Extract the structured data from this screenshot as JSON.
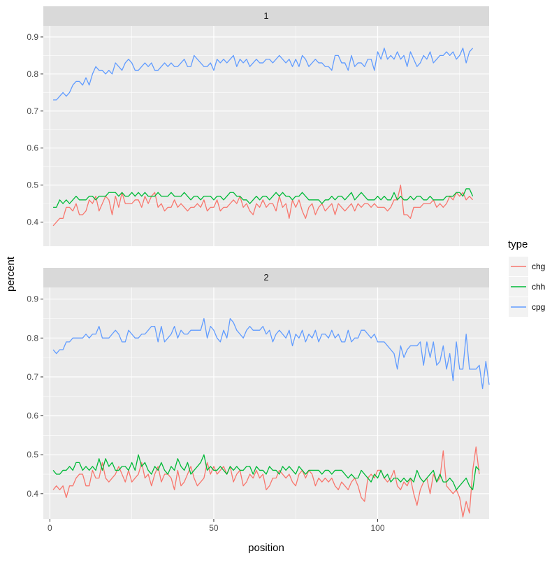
{
  "chart_data": {
    "type": "line",
    "xlabel": "position",
    "ylabel": "percent",
    "xlim": [
      -2,
      134
    ],
    "ylim": [
      0.335,
      0.93
    ],
    "x_ticks": [
      0,
      50,
      100
    ],
    "y_ticks": [
      0.4,
      0.5,
      0.6,
      0.7,
      0.8,
      0.9
    ],
    "legend": {
      "title": "type",
      "position": "right",
      "entries": [
        {
          "name": "chg",
          "color": "#F8766D"
        },
        {
          "name": "chh",
          "color": "#00BA38"
        },
        {
          "name": "cpg",
          "color": "#619CFF"
        }
      ]
    },
    "panels": [
      {
        "label": "1",
        "series": [
          {
            "name": "chg",
            "color": "#F8766D",
            "values": [
              0.39,
              0.4,
              0.41,
              0.41,
              0.44,
              0.44,
              0.43,
              0.45,
              0.42,
              0.42,
              0.43,
              0.46,
              0.45,
              0.47,
              0.43,
              0.45,
              0.47,
              0.46,
              0.42,
              0.47,
              0.44,
              0.48,
              0.45,
              0.45,
              0.45,
              0.46,
              0.46,
              0.44,
              0.47,
              0.45,
              0.47,
              0.48,
              0.44,
              0.45,
              0.43,
              0.44,
              0.44,
              0.46,
              0.44,
              0.45,
              0.44,
              0.43,
              0.44,
              0.44,
              0.45,
              0.44,
              0.46,
              0.43,
              0.44,
              0.44,
              0.46,
              0.43,
              0.44,
              0.44,
              0.45,
              0.46,
              0.45,
              0.47,
              0.44,
              0.45,
              0.43,
              0.42,
              0.45,
              0.44,
              0.46,
              0.44,
              0.45,
              0.45,
              0.43,
              0.47,
              0.44,
              0.45,
              0.41,
              0.46,
              0.44,
              0.46,
              0.43,
              0.41,
              0.44,
              0.45,
              0.42,
              0.44,
              0.45,
              0.43,
              0.44,
              0.45,
              0.42,
              0.45,
              0.44,
              0.43,
              0.44,
              0.45,
              0.43,
              0.45,
              0.44,
              0.45,
              0.45,
              0.44,
              0.45,
              0.44,
              0.44,
              0.44,
              0.43,
              0.44,
              0.46,
              0.46,
              0.5,
              0.42,
              0.42,
              0.41,
              0.44,
              0.44,
              0.44,
              0.45,
              0.45,
              0.45,
              0.46,
              0.44,
              0.45,
              0.44,
              0.45,
              0.47,
              0.46,
              0.48,
              0.47,
              0.48,
              0.46,
              0.47,
              0.46
            ]
          },
          {
            "name": "chh",
            "color": "#00BA38",
            "values": [
              0.44,
              0.44,
              0.46,
              0.45,
              0.46,
              0.45,
              0.46,
              0.47,
              0.46,
              0.46,
              0.46,
              0.47,
              0.47,
              0.46,
              0.47,
              0.47,
              0.47,
              0.48,
              0.48,
              0.48,
              0.47,
              0.48,
              0.47,
              0.47,
              0.48,
              0.47,
              0.48,
              0.47,
              0.48,
              0.47,
              0.47,
              0.47,
              0.48,
              0.47,
              0.47,
              0.47,
              0.48,
              0.47,
              0.47,
              0.47,
              0.48,
              0.47,
              0.46,
              0.47,
              0.47,
              0.46,
              0.47,
              0.47,
              0.47,
              0.46,
              0.47,
              0.47,
              0.46,
              0.47,
              0.48,
              0.48,
              0.47,
              0.47,
              0.46,
              0.46,
              0.45,
              0.46,
              0.47,
              0.46,
              0.47,
              0.47,
              0.46,
              0.47,
              0.48,
              0.47,
              0.48,
              0.47,
              0.47,
              0.46,
              0.47,
              0.47,
              0.48,
              0.47,
              0.46,
              0.46,
              0.46,
              0.46,
              0.45,
              0.46,
              0.46,
              0.47,
              0.46,
              0.47,
              0.47,
              0.46,
              0.47,
              0.48,
              0.46,
              0.47,
              0.48,
              0.47,
              0.46,
              0.46,
              0.46,
              0.47,
              0.46,
              0.47,
              0.46,
              0.46,
              0.48,
              0.46,
              0.47,
              0.46,
              0.46,
              0.47,
              0.46,
              0.47,
              0.47,
              0.46,
              0.46,
              0.47,
              0.46,
              0.46,
              0.46,
              0.46,
              0.47,
              0.47,
              0.47,
              0.48,
              0.48,
              0.47,
              0.49,
              0.49,
              0.47
            ]
          },
          {
            "name": "cpg",
            "color": "#619CFF",
            "values": [
              0.73,
              0.73,
              0.74,
              0.75,
              0.74,
              0.75,
              0.77,
              0.78,
              0.78,
              0.77,
              0.79,
              0.77,
              0.8,
              0.82,
              0.81,
              0.81,
              0.8,
              0.81,
              0.8,
              0.83,
              0.82,
              0.81,
              0.83,
              0.84,
              0.83,
              0.81,
              0.81,
              0.82,
              0.83,
              0.82,
              0.83,
              0.81,
              0.81,
              0.82,
              0.83,
              0.82,
              0.83,
              0.82,
              0.82,
              0.83,
              0.84,
              0.82,
              0.82,
              0.85,
              0.84,
              0.83,
              0.82,
              0.82,
              0.83,
              0.81,
              0.84,
              0.83,
              0.84,
              0.83,
              0.84,
              0.85,
              0.82,
              0.84,
              0.83,
              0.84,
              0.82,
              0.83,
              0.84,
              0.83,
              0.83,
              0.84,
              0.84,
              0.83,
              0.84,
              0.85,
              0.84,
              0.83,
              0.84,
              0.82,
              0.84,
              0.82,
              0.85,
              0.84,
              0.82,
              0.83,
              0.84,
              0.83,
              0.83,
              0.82,
              0.82,
              0.81,
              0.85,
              0.85,
              0.83,
              0.83,
              0.81,
              0.85,
              0.82,
              0.83,
              0.83,
              0.82,
              0.84,
              0.84,
              0.81,
              0.86,
              0.84,
              0.87,
              0.84,
              0.85,
              0.84,
              0.86,
              0.84,
              0.85,
              0.82,
              0.86,
              0.84,
              0.82,
              0.83,
              0.85,
              0.84,
              0.86,
              0.83,
              0.84,
              0.85,
              0.85,
              0.86,
              0.85,
              0.86,
              0.84,
              0.85,
              0.87,
              0.83,
              0.86,
              0.87
            ]
          }
        ]
      },
      {
        "label": "2",
        "series": [
          {
            "name": "chg",
            "color": "#F8766D",
            "values": [
              0.41,
              0.42,
              0.41,
              0.42,
              0.39,
              0.42,
              0.42,
              0.44,
              0.45,
              0.45,
              0.42,
              0.42,
              0.46,
              0.44,
              0.44,
              0.48,
              0.44,
              0.43,
              0.44,
              0.45,
              0.47,
              0.45,
              0.43,
              0.46,
              0.43,
              0.44,
              0.45,
              0.48,
              0.44,
              0.45,
              0.42,
              0.45,
              0.47,
              0.43,
              0.45,
              0.45,
              0.44,
              0.41,
              0.46,
              0.42,
              0.43,
              0.45,
              0.47,
              0.44,
              0.42,
              0.43,
              0.44,
              0.48,
              0.45,
              0.47,
              0.45,
              0.46,
              0.47,
              0.45,
              0.47,
              0.43,
              0.45,
              0.46,
              0.42,
              0.43,
              0.45,
              0.44,
              0.46,
              0.44,
              0.45,
              0.41,
              0.42,
              0.44,
              0.44,
              0.46,
              0.45,
              0.44,
              0.45,
              0.43,
              0.42,
              0.45,
              0.46,
              0.44,
              0.46,
              0.45,
              0.42,
              0.44,
              0.43,
              0.44,
              0.43,
              0.44,
              0.42,
              0.41,
              0.43,
              0.42,
              0.41,
              0.43,
              0.44,
              0.42,
              0.39,
              0.38,
              0.44,
              0.45,
              0.44,
              0.46,
              0.46,
              0.44,
              0.43,
              0.44,
              0.46,
              0.42,
              0.41,
              0.43,
              0.42,
              0.44,
              0.4,
              0.37,
              0.41,
              0.43,
              0.44,
              0.4,
              0.45,
              0.43,
              0.44,
              0.51,
              0.42,
              0.41,
              0.4,
              0.41,
              0.39,
              0.34,
              0.38,
              0.35,
              0.46,
              0.52,
              0.45
            ]
          },
          {
            "name": "chh",
            "color": "#00BA38",
            "values": [
              0.46,
              0.45,
              0.45,
              0.46,
              0.46,
              0.47,
              0.46,
              0.48,
              0.48,
              0.46,
              0.47,
              0.46,
              0.47,
              0.46,
              0.49,
              0.46,
              0.49,
              0.47,
              0.48,
              0.46,
              0.46,
              0.47,
              0.47,
              0.46,
              0.48,
              0.46,
              0.5,
              0.47,
              0.48,
              0.46,
              0.45,
              0.47,
              0.46,
              0.48,
              0.46,
              0.45,
              0.47,
              0.46,
              0.49,
              0.47,
              0.46,
              0.48,
              0.45,
              0.46,
              0.47,
              0.48,
              0.5,
              0.46,
              0.47,
              0.46,
              0.46,
              0.47,
              0.46,
              0.45,
              0.47,
              0.46,
              0.47,
              0.46,
              0.46,
              0.47,
              0.47,
              0.45,
              0.47,
              0.46,
              0.46,
              0.45,
              0.47,
              0.46,
              0.46,
              0.45,
              0.47,
              0.46,
              0.47,
              0.46,
              0.45,
              0.47,
              0.46,
              0.45,
              0.46,
              0.46,
              0.46,
              0.46,
              0.45,
              0.46,
              0.46,
              0.45,
              0.46,
              0.46,
              0.46,
              0.45,
              0.44,
              0.45,
              0.44,
              0.44,
              0.46,
              0.45,
              0.44,
              0.43,
              0.45,
              0.44,
              0.46,
              0.44,
              0.45,
              0.43,
              0.44,
              0.44,
              0.43,
              0.44,
              0.43,
              0.44,
              0.43,
              0.46,
              0.44,
              0.43,
              0.44,
              0.45,
              0.46,
              0.43,
              0.45,
              0.43,
              0.43,
              0.44,
              0.43,
              0.41,
              0.42,
              0.43,
              0.44,
              0.42,
              0.41,
              0.47,
              0.46
            ]
          },
          {
            "name": "cpg",
            "color": "#619CFF",
            "values": [
              0.77,
              0.76,
              0.77,
              0.77,
              0.79,
              0.79,
              0.8,
              0.8,
              0.8,
              0.8,
              0.81,
              0.8,
              0.81,
              0.81,
              0.83,
              0.8,
              0.8,
              0.8,
              0.81,
              0.82,
              0.81,
              0.79,
              0.79,
              0.82,
              0.81,
              0.8,
              0.8,
              0.81,
              0.81,
              0.82,
              0.83,
              0.83,
              0.79,
              0.83,
              0.79,
              0.8,
              0.81,
              0.83,
              0.8,
              0.82,
              0.81,
              0.81,
              0.82,
              0.82,
              0.82,
              0.82,
              0.85,
              0.8,
              0.83,
              0.82,
              0.8,
              0.79,
              0.82,
              0.8,
              0.85,
              0.84,
              0.82,
              0.81,
              0.8,
              0.82,
              0.83,
              0.82,
              0.82,
              0.82,
              0.83,
              0.81,
              0.82,
              0.79,
              0.81,
              0.82,
              0.81,
              0.8,
              0.82,
              0.78,
              0.81,
              0.8,
              0.82,
              0.79,
              0.81,
              0.8,
              0.82,
              0.79,
              0.81,
              0.81,
              0.8,
              0.82,
              0.8,
              0.81,
              0.79,
              0.79,
              0.82,
              0.79,
              0.8,
              0.8,
              0.82,
              0.82,
              0.81,
              0.8,
              0.81,
              0.79,
              0.79,
              0.79,
              0.78,
              0.77,
              0.76,
              0.72,
              0.78,
              0.75,
              0.77,
              0.78,
              0.78,
              0.78,
              0.79,
              0.73,
              0.79,
              0.75,
              0.79,
              0.73,
              0.74,
              0.78,
              0.72,
              0.76,
              0.69,
              0.79,
              0.72,
              0.72,
              0.81,
              0.72,
              0.72,
              0.72,
              0.73,
              0.67,
              0.74,
              0.68
            ]
          }
        ]
      }
    ]
  }
}
